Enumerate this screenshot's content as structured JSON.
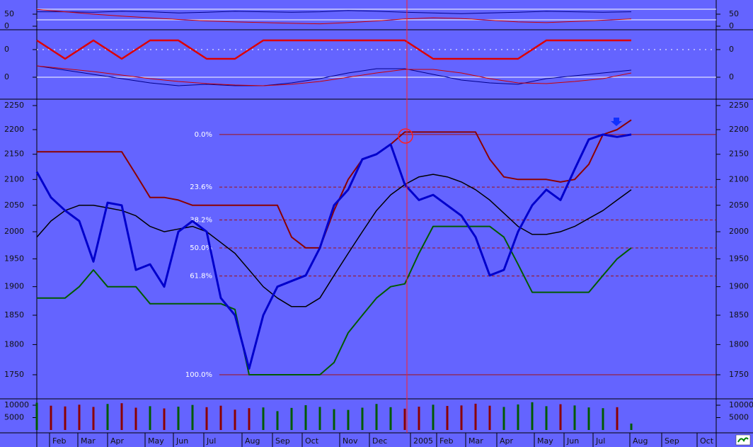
{
  "chart_data": [
    {
      "type": "line",
      "log_scale": true,
      "x": [
        0,
        2,
        4,
        6,
        8,
        10,
        12,
        14,
        16,
        18,
        20,
        22,
        24,
        26,
        28,
        30,
        32,
        34,
        36,
        38,
        40,
        42,
        44,
        46,
        48,
        50,
        52,
        54,
        56,
        58,
        60,
        62,
        64,
        66,
        68,
        70,
        72,
        74,
        76,
        78,
        80,
        82,
        84
      ],
      "xlim": [
        0,
        96
      ],
      "xticks": [
        {
          "value": 1.8,
          "label": "Feb"
        },
        {
          "value": 5.8,
          "label": "Mar"
        },
        {
          "value": 10,
          "label": "Apr"
        },
        {
          "value": 15.3,
          "label": "May"
        },
        {
          "value": 19.3,
          "label": "Jun"
        },
        {
          "value": 23.6,
          "label": "Jul"
        },
        {
          "value": 29,
          "label": "Aug"
        },
        {
          "value": 33.3,
          "label": "Sep"
        },
        {
          "value": 37.5,
          "label": "Oct"
        },
        {
          "value": 42.8,
          "label": "Nov"
        },
        {
          "value": 47,
          "label": "Dec"
        },
        {
          "value": 52.8,
          "label": "2005"
        },
        {
          "value": 56.5,
          "label": "Feb"
        },
        {
          "value": 60.6,
          "label": "Mar"
        },
        {
          "value": 65,
          "label": "Apr"
        },
        {
          "value": 70.3,
          "label": "May"
        },
        {
          "value": 74.5,
          "label": "Jun"
        },
        {
          "value": 78.6,
          "label": "Jul"
        },
        {
          "value": 83.8,
          "label": "Aug"
        },
        {
          "value": 88.3,
          "label": "Sep"
        },
        {
          "value": 93.3,
          "label": "Oct"
        }
      ],
      "ylim": [
        1750,
        2250
      ],
      "yticks": [
        1750,
        1800,
        1850,
        1900,
        1950,
        2000,
        2050,
        2100,
        2150,
        2200,
        2250
      ],
      "fib_levels": [
        {
          "label": "0.0%",
          "value": 2190
        },
        {
          "label": "23.6%",
          "value": 2085
        },
        {
          "label": "38.2%",
          "value": 2022
        },
        {
          "label": "50.0%",
          "value": 1970
        },
        {
          "label": "61.8%",
          "value": 1919
        },
        {
          "label": "100.0%",
          "value": 1750
        }
      ],
      "series": [
        {
          "color": "#8b0000",
          "width": 2,
          "values": [
            2155,
            2155,
            2155,
            2155,
            2155,
            2155,
            2155,
            2110,
            2065,
            2065,
            2060,
            2050,
            2050,
            2050,
            2050,
            2050,
            2050,
            2050,
            1990,
            1970,
            1970,
            2040,
            2100,
            2140,
            2150,
            2170,
            2195,
            2195,
            2195,
            2195,
            2195,
            2195,
            2140,
            2105,
            2100,
            2100,
            2100,
            2095,
            2100,
            2130,
            2190,
            2200,
            2220
          ]
        },
        {
          "color": "#005a00",
          "width": 2,
          "values": [
            1880,
            1880,
            1880,
            1900,
            1930,
            1900,
            1900,
            1900,
            1870,
            1870,
            1870,
            1870,
            1870,
            1870,
            1860,
            1750,
            1750,
            1750,
            1750,
            1750,
            1750,
            1770,
            1820,
            1850,
            1880,
            1900,
            1905,
            1960,
            2010,
            2010,
            2010,
            2010,
            2010,
            1990,
            1940,
            1890,
            1890,
            1890,
            1890,
            1890,
            1920,
            1950,
            1970
          ]
        },
        {
          "color": "#000000",
          "width": 1.5,
          "values": [
            1990,
            2020,
            2040,
            2050,
            2050,
            2045,
            2040,
            2030,
            2010,
            2000,
            2005,
            2010,
            2000,
            1980,
            1960,
            1930,
            1900,
            1880,
            1865,
            1865,
            1880,
            1920,
            1960,
            2000,
            2040,
            2070,
            2090,
            2105,
            2110,
            2105,
            2095,
            2080,
            2060,
            2035,
            2010,
            1995,
            1995,
            2000,
            2010,
            2025,
            2040,
            2060,
            2080
          ]
        },
        {
          "color": "#0000cc",
          "width": 3,
          "values": [
            2115,
            2065,
            2040,
            2020,
            1945,
            2055,
            2050,
            1930,
            1940,
            1900,
            2000,
            2020,
            2000,
            1880,
            1850,
            1760,
            1850,
            1900,
            1910,
            1920,
            1970,
            2050,
            2080,
            2140,
            2150,
            2170,
            2090,
            2060,
            2070,
            2050,
            2030,
            1990,
            1920,
            1930,
            2000,
            2050,
            2080,
            2060,
            2120,
            2180,
            2190,
            2185,
            2190
          ]
        }
      ]
    },
    {
      "type": "bar",
      "x": [
        0,
        2,
        4,
        6,
        8,
        10,
        12,
        14,
        16,
        18,
        20,
        22,
        24,
        26,
        28,
        30,
        32,
        34,
        36,
        38,
        40,
        42,
        44,
        46,
        48,
        50,
        52,
        54,
        56,
        58,
        60,
        62,
        64,
        66,
        68,
        70,
        72,
        74,
        76,
        78,
        80,
        82,
        84
      ],
      "values": [
        11000,
        9800,
        9500,
        10200,
        9300,
        10500,
        10800,
        9000,
        9600,
        8700,
        9400,
        10100,
        9200,
        9800,
        8200,
        8800,
        9100,
        7600,
        8900,
        10000,
        9300,
        8400,
        8100,
        9000,
        10500,
        9200,
        8600,
        9400,
        10200,
        9700,
        9900,
        10600,
        9800,
        9300,
        10300,
        11200,
        9600,
        10400,
        9900,
        9100,
        8800,
        9200,
        2600
      ],
      "up_color": "#005a00",
      "down_color": "#8b0000",
      "ylim": [
        0,
        12000
      ],
      "yticks": [
        5000,
        10000
      ]
    },
    {
      "type": "line",
      "x": [
        0,
        4,
        8,
        12,
        16,
        20,
        24,
        28,
        32,
        36,
        40,
        44,
        48,
        52,
        56,
        60,
        64,
        68,
        72,
        76,
        80,
        84
      ],
      "ylim": [
        0,
        100
      ],
      "yticks": [
        0,
        50
      ],
      "series": [
        {
          "color": "#00008b",
          "width": 1,
          "values": [
            60,
            60,
            58,
            62,
            60,
            55,
            58,
            62,
            60,
            58,
            60,
            65,
            62,
            58,
            55,
            52,
            55,
            58,
            62,
            60,
            58,
            60
          ]
        },
        {
          "color": "#cc0000",
          "width": 1,
          "values": [
            70,
            60,
            50,
            42,
            35,
            28,
            22,
            18,
            15,
            12,
            10,
            15,
            22,
            30,
            35,
            32,
            25,
            18,
            15,
            20,
            25,
            30
          ]
        }
      ]
    },
    {
      "type": "line",
      "x": [
        0,
        4,
        8,
        12,
        16,
        20,
        24,
        28,
        32,
        36,
        40,
        44,
        48,
        52,
        56,
        60,
        64,
        68,
        72,
        76,
        80,
        84
      ],
      "ylim": [
        -1,
        1
      ],
      "yticks": [
        0
      ],
      "series": [
        {
          "color": "#dd0000",
          "width": 2.5,
          "values": [
            1,
            -1,
            1,
            -1,
            1,
            1,
            -1,
            -1,
            1,
            1,
            1,
            1,
            1,
            1,
            -1,
            -1,
            -1,
            -1,
            1,
            1,
            1,
            1
          ]
        }
      ]
    },
    {
      "type": "line",
      "x": [
        0,
        4,
        8,
        12,
        16,
        20,
        24,
        28,
        32,
        36,
        40,
        44,
        48,
        52,
        56,
        60,
        64,
        68,
        72,
        76,
        80,
        84
      ],
      "ylim": [
        -1,
        1
      ],
      "yticks": [
        0
      ],
      "series": [
        {
          "color": "#00008b",
          "width": 1,
          "values": [
            0.8,
            0.5,
            0.2,
            -0.1,
            -0.4,
            -0.6,
            -0.5,
            -0.6,
            -0.6,
            -0.4,
            -0.1,
            0.3,
            0.6,
            0.6,
            0.2,
            -0.2,
            -0.4,
            -0.5,
            -0.1,
            0.1,
            0.3,
            0.5
          ]
        },
        {
          "color": "#cc0000",
          "width": 1,
          "values": [
            0.8,
            0.6,
            0.4,
            0.15,
            -0.1,
            -0.3,
            -0.45,
            -0.55,
            -0.6,
            -0.5,
            -0.3,
            0,
            0.3,
            0.55,
            0.55,
            0.3,
            -0.1,
            -0.4,
            -0.45,
            -0.3,
            -0.1,
            0.3
          ]
        }
      ]
    }
  ]
}
